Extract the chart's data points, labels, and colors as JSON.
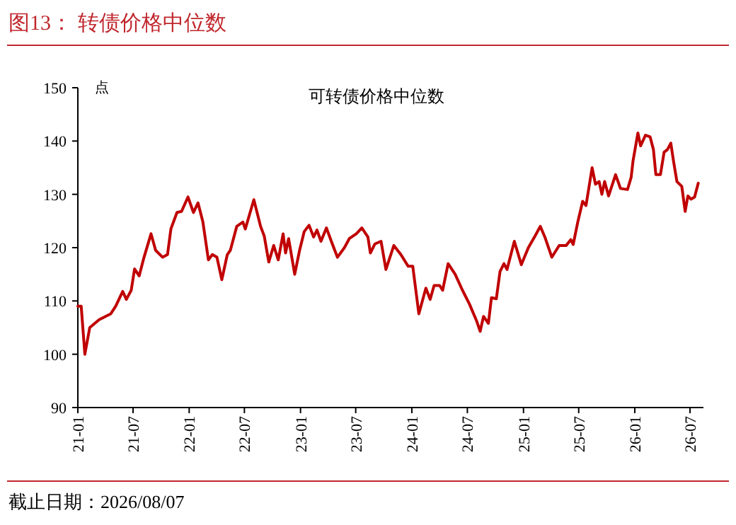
{
  "chart_data": {
    "type": "line",
    "title": "图13：  转债价格中位数",
    "subtitle": "可转债价格中位数",
    "ylabel": "点",
    "annotations": [
      "截止日期：2026/08/07"
    ],
    "x": [
      "2021-01-01",
      "2021-01-12",
      "2021-01-24",
      "2021-02-09",
      "2021-03-12",
      "2021-04-19",
      "2021-05-05",
      "2021-05-28",
      "2021-06-09",
      "2021-06-25",
      "2021-07-06",
      "2021-07-21",
      "2021-08-06",
      "2021-08-29",
      "2021-09-13",
      "2021-10-06",
      "2021-10-22",
      "2021-11-02",
      "2021-11-22",
      "2021-12-07",
      "2021-12-28",
      "2022-01-15",
      "2022-01-30",
      "2022-02-15",
      "2022-03-05",
      "2022-03-18",
      "2022-04-02",
      "2022-04-18",
      "2022-05-06",
      "2022-05-16",
      "2022-06-06",
      "2022-06-26",
      "2022-07-04",
      "2022-08-01",
      "2022-08-23",
      "2022-09-04",
      "2022-09-19",
      "2022-10-05",
      "2022-10-20",
      "2022-11-05",
      "2022-11-13",
      "2022-11-23",
      "2022-12-13",
      "2022-12-29",
      "2023-01-13",
      "2023-01-29",
      "2023-02-13",
      "2023-02-24",
      "2023-03-09",
      "2023-03-27",
      "2023-04-12",
      "2023-05-02",
      "2023-05-25",
      "2023-06-10",
      "2023-07-03",
      "2023-07-21",
      "2023-08-10",
      "2023-08-18",
      "2023-09-02",
      "2023-09-22",
      "2023-10-08",
      "2023-11-03",
      "2023-11-26",
      "2023-12-20",
      "2024-01-04",
      "2024-01-24",
      "2024-02-16",
      "2024-03-01",
      "2024-03-14",
      "2024-04-01",
      "2024-04-11",
      "2024-04-29",
      "2024-05-22",
      "2024-06-15",
      "2024-07-08",
      "2024-07-31",
      "2024-08-12",
      "2024-08-23",
      "2024-09-08",
      "2024-09-18",
      "2024-10-04",
      "2024-10-16",
      "2024-10-29",
      "2024-11-08",
      "2024-12-02",
      "2024-12-25",
      "2025-01-17",
      "2025-02-09",
      "2025-02-25",
      "2025-03-12",
      "2025-04-04",
      "2025-04-28",
      "2025-05-21",
      "2025-06-05",
      "2025-06-13",
      "2025-06-28",
      "2025-07-14",
      "2025-07-25",
      "2025-08-14",
      "2025-08-25",
      "2025-09-06",
      "2025-09-15",
      "2025-09-24",
      "2025-10-07",
      "2025-10-30",
      "2025-11-15",
      "2025-12-08",
      "2025-12-20",
      "2025-12-26",
      "2026-01-11",
      "2026-01-20",
      "2026-02-05",
      "2026-02-20",
      "2026-03-03",
      "2026-03-11",
      "2026-03-26",
      "2026-04-07",
      "2026-04-18",
      "2026-04-29",
      "2026-05-08",
      "2026-05-19",
      "2026-06-04",
      "2026-06-15",
      "2026-06-24",
      "2026-07-04",
      "2026-07-16",
      "2026-07-28"
    ],
    "series": [
      {
        "color": "#c00000",
        "values": [
          109,
          109,
          100,
          105,
          106.5,
          107.6,
          109,
          111.8,
          110.3,
          112,
          116,
          114.7,
          118.2,
          122.6,
          119.5,
          118.2,
          118.7,
          123.5,
          126.6,
          126.8,
          129.5,
          126.6,
          128.4,
          124.8,
          117.7,
          118.7,
          118.2,
          114,
          118.7,
          119.5,
          124,
          124.8,
          123.5,
          129,
          124,
          122.2,
          117.3,
          120.4,
          117.7,
          122.6,
          119,
          121.7,
          115,
          119.5,
          123,
          124.2,
          122,
          123.3,
          121.2,
          123.7,
          121.2,
          118.2,
          120,
          121.7,
          122.6,
          123.7,
          122,
          119,
          120.7,
          121.2,
          115.9,
          120.4,
          118.7,
          116.5,
          116.5,
          107.6,
          112.4,
          110.3,
          112.9,
          112.9,
          112,
          117,
          115,
          112,
          109.4,
          106.3,
          104.3,
          107.1,
          105.8,
          110.6,
          110.4,
          115.5,
          117,
          115.9,
          121.2,
          116.8,
          120,
          122.3,
          124,
          122,
          118.2,
          120.4,
          120.4,
          121.5,
          120.6,
          124.8,
          128.7,
          127.9,
          135,
          131.9,
          132.4,
          130,
          132.4,
          129.7,
          133.7,
          131.1,
          130.9,
          133.2,
          136.2,
          141.5,
          139.1,
          141.1,
          140.8,
          138.4,
          133.7,
          133.7,
          137.9,
          138.4,
          139.6,
          136.2,
          132.4,
          131.5,
          126.8,
          129.7,
          129.1,
          129.5,
          132.1
        ]
      }
    ],
    "xlim": [
      "2021-01-01",
      "2026-08-14"
    ],
    "xticks": [
      {
        "value": "2021-01-01",
        "label": "21-01"
      },
      {
        "value": "2021-07-01",
        "label": "21-07"
      },
      {
        "value": "2022-01-01",
        "label": "22-01"
      },
      {
        "value": "2022-07-01",
        "label": "22-07"
      },
      {
        "value": "2023-01-01",
        "label": "23-01"
      },
      {
        "value": "2023-07-01",
        "label": "23-07"
      },
      {
        "value": "2024-01-01",
        "label": "24-01"
      },
      {
        "value": "2024-07-01",
        "label": "24-07"
      },
      {
        "value": "2025-01-01",
        "label": "25-01"
      },
      {
        "value": "2025-07-01",
        "label": "25-07"
      },
      {
        "value": "2026-01-01",
        "label": "26-01"
      },
      {
        "value": "2026-07-01",
        "label": "26-07"
      }
    ],
    "ylim": [
      90,
      150
    ],
    "yticks": [
      90,
      100,
      110,
      120,
      130,
      140,
      150
    ],
    "grid": false,
    "marker": "none",
    "line_style": "solid"
  }
}
